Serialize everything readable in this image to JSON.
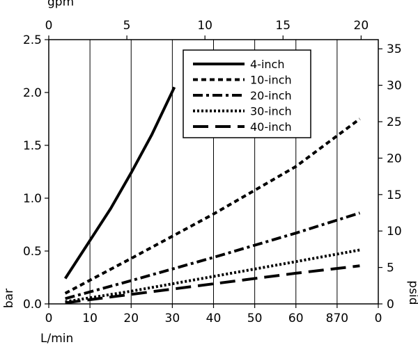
{
  "chart_data": {
    "type": "line",
    "x_axis": {
      "label": "L/min",
      "ticks": [
        "0",
        "10",
        "20",
        "30",
        "40",
        "50",
        "60",
        "870",
        "0"
      ],
      "range": [
        0,
        80
      ]
    },
    "x2_axis": {
      "label": "gpm",
      "ticks": [
        "0",
        "5",
        "10",
        "15",
        "20"
      ],
      "range": [
        0,
        21.1
      ]
    },
    "y_axis": {
      "label": "bar",
      "ticks": [
        "0.0",
        "0.5",
        "1.0",
        "1.5",
        "2.0",
        "2.5"
      ],
      "range": [
        0,
        2.5
      ]
    },
    "y2_axis": {
      "label": "psid",
      "ticks": [
        "0",
        "5",
        "10",
        "15",
        "20",
        "25",
        "30",
        "35"
      ],
      "range": [
        0,
        36.26
      ]
    },
    "grid": "vertical",
    "legend_position": "top-right",
    "series": [
      {
        "name": "4-inch",
        "dash": "solid",
        "x": [
          4,
          10,
          15,
          20,
          25,
          30.5
        ],
        "y": [
          0.24,
          0.6,
          0.9,
          1.24,
          1.6,
          2.05
        ]
      },
      {
        "name": "10-inch",
        "dash": "short-dash",
        "x": [
          4,
          20,
          40,
          60,
          75.5
        ],
        "y": [
          0.1,
          0.43,
          0.85,
          1.3,
          1.75
        ]
      },
      {
        "name": "20-inch",
        "dash": "dash-dot",
        "x": [
          4,
          20,
          40,
          60,
          75.5
        ],
        "y": [
          0.05,
          0.22,
          0.44,
          0.67,
          0.86
        ]
      },
      {
        "name": "30-inch",
        "dash": "dotted",
        "x": [
          4,
          20,
          40,
          60,
          75.5
        ],
        "y": [
          0.02,
          0.12,
          0.26,
          0.4,
          0.51
        ]
      },
      {
        "name": "40-inch",
        "dash": "long-dash",
        "x": [
          4,
          20,
          40,
          60,
          75.5
        ],
        "y": [
          0.01,
          0.09,
          0.19,
          0.29,
          0.36
        ]
      }
    ]
  }
}
